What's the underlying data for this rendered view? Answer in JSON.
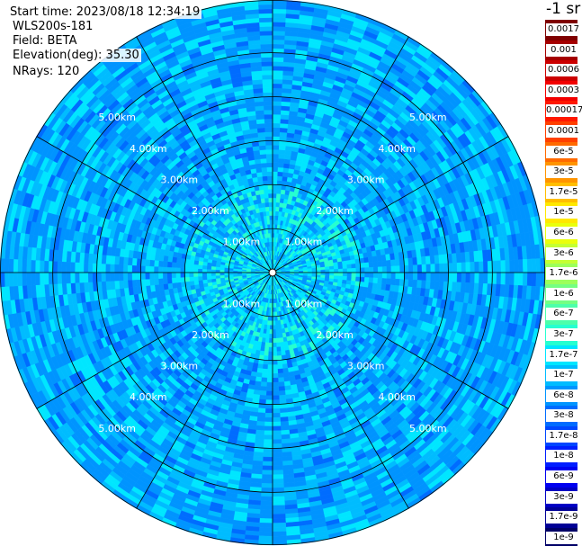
{
  "info": {
    "start_time": "Start time: 2023/08/18 12:34:19",
    "device": "WLS200s-181",
    "field": "Field: BETA",
    "elevation": "Elevation(deg): 35.30",
    "nrays": "NRays: 120"
  },
  "colorbar": {
    "unit": "-1 sr",
    "labels": [
      "0.0017",
      "0.001",
      "0.0006",
      "0.0003",
      "0.00017",
      "0.0001",
      "6e-5",
      "3e-5",
      "1.7e-5",
      "1e-5",
      "6e-6",
      "3e-6",
      "1.7e-6",
      "1e-6",
      "6e-7",
      "3e-7",
      "1.7e-7",
      "1e-7",
      "6e-8",
      "3e-8",
      "1.7e-8",
      "1e-8",
      "6e-9",
      "3e-9",
      "1.7e-9",
      "1e-9"
    ],
    "colors": [
      "#7f0000",
      "#a50000",
      "#cc0000",
      "#f20000",
      "#ff1800",
      "#ff4000",
      "#ff6a00",
      "#ff9400",
      "#ffbe00",
      "#ffe800",
      "#eaff0c",
      "#c4ff33",
      "#9cff5a",
      "#74ff82",
      "#4cffaa",
      "#26ffd0",
      "#00e6ff",
      "#00bcff",
      "#0094ff",
      "#006cff",
      "#0046ff",
      "#001eff",
      "#0000f0",
      "#0000c4",
      "#000096",
      "#000066"
    ]
  },
  "chart_data": {
    "type": "heatmap",
    "projection": "polar",
    "field": "BETA",
    "rays": 120,
    "elevation_deg": 35.3,
    "range_rings_km": [
      1.0,
      2.0,
      3.0,
      4.0,
      5.0
    ],
    "range_max_km": 6.2,
    "azimuth_lines_every_deg": 30,
    "ring_labels": [
      "1.00km",
      "2.00km",
      "3.00km",
      "4.00km",
      "5.00km"
    ],
    "value_range": [
      1e-09,
      0.0017
    ],
    "typical_values": {
      "inner_0_1km": 1e-07,
      "mid_1_2km": 1e-07,
      "outer_2_6km": 6e-08
    }
  }
}
